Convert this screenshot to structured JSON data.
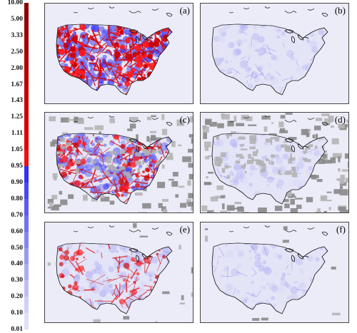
{
  "colorbar": {
    "labels": [
      "10.00",
      "5.00",
      "3.33",
      "2.50",
      "2.00",
      "1.67",
      "1.43",
      "1.25",
      "1.11",
      "1.05",
      "0.95",
      "0.90",
      "0.80",
      "0.70",
      "0.60",
      "0.50",
      "0.40",
      "0.30",
      "0.20",
      "0.10",
      "0.01"
    ],
    "colors": {
      "high": "#8b0000",
      "mid_high": "#d40000",
      "near_one_high": "#ff1a1a",
      "near_one_low": "#3333ff",
      "low": "#e6e6fa"
    }
  },
  "panels": [
    {
      "label": "(a)",
      "intensity": 1.0,
      "missing": 0.0
    },
    {
      "label": "(b)",
      "intensity": 0.08,
      "missing": 0.0
    },
    {
      "label": "(c)",
      "intensity": 0.65,
      "missing": 0.4
    },
    {
      "label": "(d)",
      "intensity": 0.06,
      "missing": 0.6
    },
    {
      "label": "(e)",
      "intensity": 0.35,
      "missing": 0.05
    },
    {
      "label": "(f)",
      "intensity": 0.1,
      "missing": 0.05
    }
  ]
}
